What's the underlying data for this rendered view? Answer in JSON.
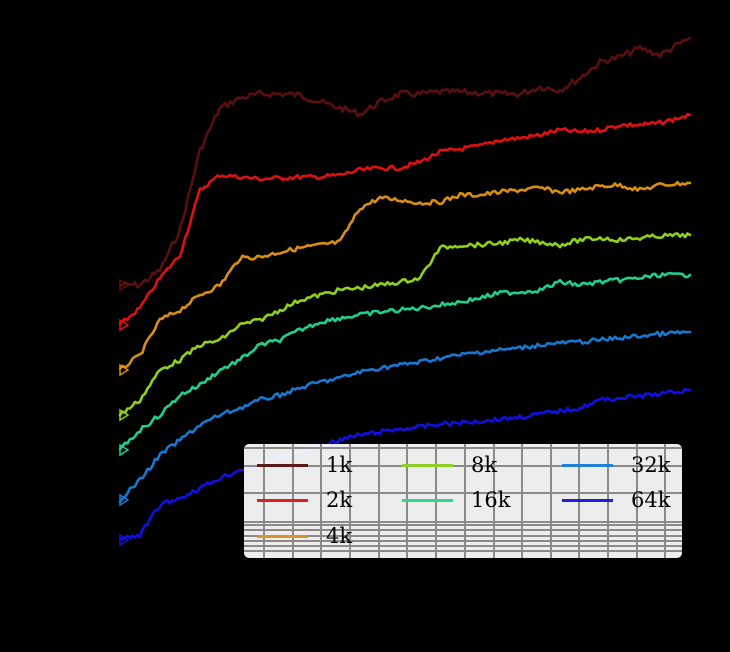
{
  "chart_data": {
    "type": "line",
    "title": "",
    "xlabel": "",
    "ylabel": "",
    "notes": "Axis labels and ticks are rendered black on a black background and are not visible. Values are read as pixel-relative heights (higher = larger); x is position across plot in pixels from left edge (120) to right edge (690). Y axis appears log-scaled (minor gridlines cluster visible through legend).",
    "x": [
      120,
      140,
      160,
      180,
      200,
      220,
      240,
      260,
      280,
      300,
      320,
      340,
      360,
      380,
      400,
      420,
      440,
      460,
      480,
      500,
      520,
      540,
      560,
      580,
      600,
      620,
      640,
      660,
      690
    ],
    "xlim": [
      120,
      690
    ],
    "ylim": [
      0,
      530
    ],
    "grid": true,
    "legend_position": "lower right",
    "series": [
      {
        "name": "1k",
        "color": "#5a0f0f",
        "values": [
          275,
          275,
          290,
          330,
          410,
          452,
          462,
          466,
          466,
          465,
          458,
          452,
          446,
          458,
          466,
          466,
          468,
          468,
          467,
          466,
          466,
          473,
          470,
          482,
          498,
          503,
          512,
          505,
          522
        ]
      },
      {
        "name": "2k",
        "color": "#e01010",
        "values": [
          235,
          252,
          282,
          305,
          370,
          385,
          383,
          381,
          382,
          383,
          383,
          385,
          390,
          392,
          392,
          398,
          408,
          411,
          414,
          420,
          422,
          425,
          430,
          428,
          430,
          435,
          435,
          437,
          445
        ]
      },
      {
        "name": "4k",
        "color": "#d88e12",
        "values": [
          190,
          205,
          240,
          250,
          265,
          275,
          302,
          303,
          308,
          312,
          315,
          318,
          352,
          362,
          360,
          357,
          358,
          365,
          365,
          368,
          370,
          372,
          368,
          370,
          374,
          375,
          370,
          375,
          377
        ]
      },
      {
        "name": "8k",
        "color": "#8fd01a",
        "values": [
          145,
          160,
          190,
          200,
          215,
          220,
          235,
          240,
          250,
          260,
          265,
          270,
          272,
          275,
          278,
          282,
          312,
          315,
          315,
          317,
          320,
          318,
          315,
          320,
          322,
          320,
          322,
          324,
          325
        ]
      },
      {
        "name": "16k",
        "color": "#1fd08c",
        "values": [
          110,
          130,
          145,
          165,
          175,
          190,
          200,
          215,
          220,
          230,
          238,
          242,
          245,
          248,
          250,
          252,
          255,
          258,
          262,
          267,
          268,
          270,
          278,
          275,
          278,
          280,
          282,
          285,
          285
        ]
      },
      {
        "name": "32k",
        "color": "#1878d0",
        "values": [
          60,
          80,
          105,
          120,
          135,
          145,
          152,
          160,
          165,
          172,
          178,
          182,
          188,
          192,
          195,
          198,
          202,
          205,
          208,
          210,
          212,
          215,
          217,
          218,
          220,
          222,
          224,
          226,
          228
        ]
      },
      {
        "name": "64k",
        "color": "#1010e0",
        "values": [
          20,
          25,
          55,
          62,
          72,
          82,
          90,
          96,
          102,
          108,
          114,
          120,
          125,
          128,
          131,
          133,
          136,
          137,
          139,
          141,
          143,
          146,
          149,
          152,
          160,
          162,
          164,
          166,
          170
        ]
      }
    ]
  },
  "legend": {
    "items": [
      {
        "label": "1k",
        "color": "#5a1a1a"
      },
      {
        "label": "2k",
        "color": "#e02020"
      },
      {
        "label": "4k",
        "color": "#d4962a"
      },
      {
        "label": "8k",
        "color": "#8ed02a"
      },
      {
        "label": "16k",
        "color": "#2ed890"
      },
      {
        "label": "32k",
        "color": "#2080d8"
      },
      {
        "label": "64k",
        "color": "#2020d8"
      }
    ]
  },
  "colors": {
    "background": "#000000",
    "legend_background": "#ffffff",
    "gridline": "#8a8a8a"
  }
}
